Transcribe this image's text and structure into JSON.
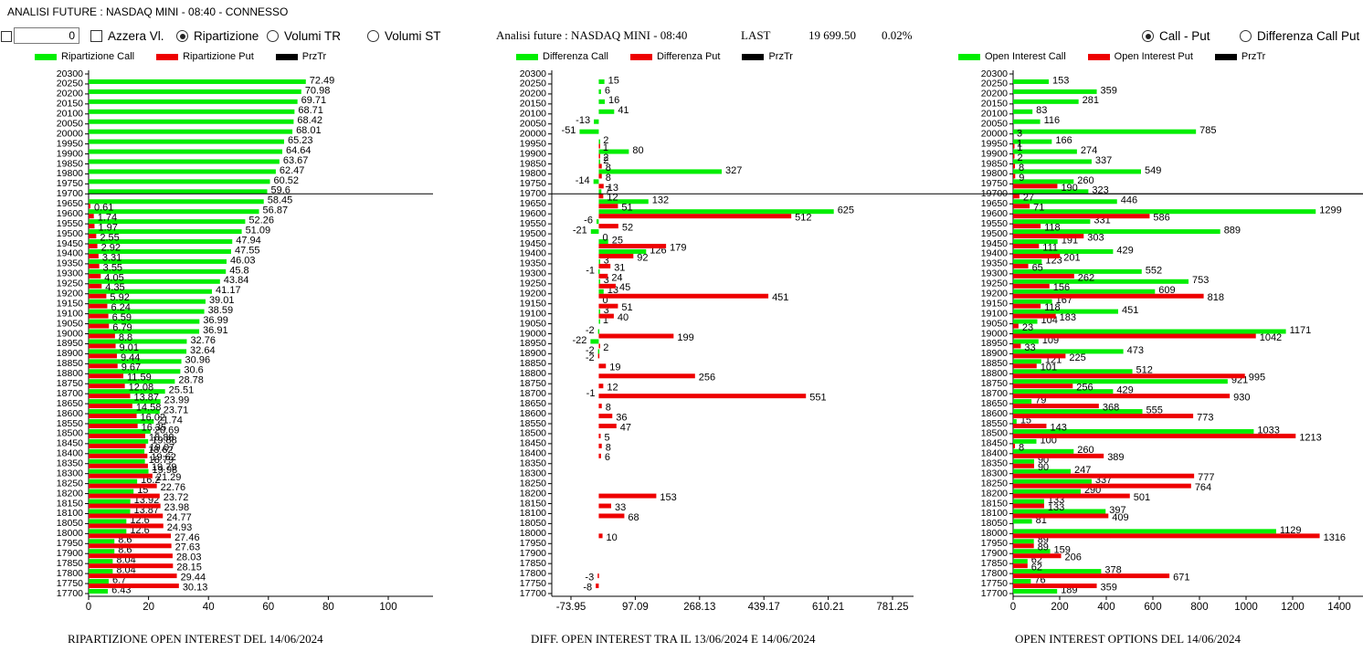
{
  "window_title": "ANALISI FUTURE : NASDAQ MINI - 08:40 - CONNESSO",
  "controls": {
    "number_value": "0",
    "azzera_label": "Azzera Vl.",
    "ripartizione_label": "Ripartizione",
    "volumi_tr_label": "Volumi TR",
    "volumi_st_label": "Volumi ST",
    "call_put_label": "Call - Put",
    "diff_call_put_label": "Differenza Call Put",
    "selected_view": "Ripartizione",
    "selected_mode": "Call - Put"
  },
  "header": {
    "title": "Analisi future : NASDAQ MINI - 08:40",
    "last_label": "LAST",
    "last_value": "19 699.50",
    "change": "0.02%"
  },
  "colors": {
    "call": "#00ee00",
    "put": "#ee0000",
    "prztr": "#000000"
  },
  "chart_data": [
    {
      "type": "bar",
      "orientation": "horizontal",
      "title": "RIPARTIZIONE OPEN INTEREST DEL 14/06/2024",
      "legend": [
        "Ripartizione Call",
        "Ripartizione Put",
        "PrzTr"
      ],
      "y_ticks": [
        "20300",
        "20250",
        "20200",
        "20150",
        "20100",
        "20050",
        "20000",
        "19950",
        "19900",
        "19850",
        "19800",
        "19750",
        "19700",
        "19650",
        "19600",
        "19550",
        "19500",
        "19450",
        "19400",
        "19350",
        "19300",
        "19250",
        "19200",
        "19150",
        "19100",
        "19050",
        "19000",
        "18950",
        "18900",
        "18850",
        "18800",
        "18750",
        "18700",
        "18650",
        "18600",
        "18550",
        "18500",
        "18450",
        "18400",
        "18350",
        "18300",
        "18250",
        "18200",
        "18150",
        "18100",
        "18050",
        "18000",
        "17950",
        "17900",
        "17850",
        "17800",
        "17750",
        "17700"
      ],
      "x_ticks": [
        "0",
        "20",
        "40",
        "60",
        "80",
        "100"
      ],
      "xlim": [
        0,
        115
      ],
      "przTr": 19700,
      "call": [
        [
          "20250",
          72.49
        ],
        [
          "20200",
          70.98
        ],
        [
          "20150",
          69.71
        ],
        [
          "20100",
          68.71
        ],
        [
          "20050",
          68.42
        ],
        [
          "20000",
          68.01
        ],
        [
          "19950",
          65.23
        ],
        [
          "19900",
          64.64
        ],
        [
          "19850",
          63.67
        ],
        [
          "19800",
          62.47
        ],
        [
          "19750",
          60.52
        ],
        [
          "19700",
          59.6
        ],
        [
          "19650",
          58.45
        ],
        [
          "19600",
          56.87
        ],
        [
          "19550",
          52.26
        ],
        [
          "19500",
          51.09
        ],
        [
          "19450",
          47.94
        ],
        [
          "19400",
          47.55
        ],
        [
          "19350",
          46.03
        ],
        [
          "19300",
          45.8
        ],
        [
          "19250",
          43.84
        ],
        [
          "19200",
          41.17
        ],
        [
          "19150",
          39.01
        ],
        [
          "19100",
          38.59
        ],
        [
          "19050",
          36.99
        ],
        [
          "19000",
          36.91
        ],
        [
          "18950",
          32.76
        ],
        [
          "18900",
          32.64
        ],
        [
          "18850",
          30.96
        ],
        [
          "18800",
          30.6
        ],
        [
          "18750",
          28.78
        ],
        [
          "18700",
          25.51
        ],
        [
          "18650",
          23.99
        ],
        [
          "18600",
          23.71
        ],
        [
          "18550",
          21.74
        ],
        [
          "18500",
          20.69
        ],
        [
          "18450",
          19.88
        ],
        [
          "18400",
          18.62
        ],
        [
          "18350",
          18.79
        ],
        [
          "18300",
          19.98
        ],
        [
          "18250",
          16.2
        ],
        [
          "18200",
          15
        ],
        [
          "18150",
          13.92
        ],
        [
          "18100",
          13.87
        ],
        [
          "18050",
          12.6
        ],
        [
          "18000",
          12.6
        ],
        [
          "17950",
          8.6
        ],
        [
          "17900",
          8.6
        ],
        [
          "17850",
          8.04
        ],
        [
          "17800",
          8.04
        ],
        [
          "17750",
          6.7
        ],
        [
          "17700",
          6.43
        ]
      ],
      "put": [
        [
          "19650",
          0.61
        ],
        [
          "19600",
          1.74
        ],
        [
          "19550",
          1.97
        ],
        [
          "19500",
          2.55
        ],
        [
          "19450",
          2.92
        ],
        [
          "19400",
          3.31
        ],
        [
          "19350",
          3.55
        ],
        [
          "19300",
          4.05
        ],
        [
          "19250",
          4.35
        ],
        [
          "19200",
          5.92
        ],
        [
          "19150",
          6.24
        ],
        [
          "19100",
          6.59
        ],
        [
          "19050",
          6.79
        ],
        [
          "19000",
          8.8
        ],
        [
          "18950",
          9.01
        ],
        [
          "18900",
          9.44
        ],
        [
          "18850",
          9.67
        ],
        [
          "18800",
          11.59
        ],
        [
          "18750",
          12.08
        ],
        [
          "18700",
          13.87
        ],
        [
          "18650",
          14.58
        ],
        [
          "18600",
          16.02
        ],
        [
          "18550",
          16.35
        ],
        [
          "18500",
          18.88
        ],
        [
          "18450",
          19.07
        ],
        [
          "18400",
          19.62
        ],
        [
          "18350",
          19.79
        ],
        [
          "18300",
          21.29
        ],
        [
          "18250",
          22.76
        ],
        [
          "18200",
          23.72
        ],
        [
          "18150",
          23.98
        ],
        [
          "18100",
          24.77
        ],
        [
          "18050",
          24.93
        ],
        [
          "18000",
          27.46
        ],
        [
          "17950",
          27.63
        ],
        [
          "17900",
          28.03
        ],
        [
          "17850",
          28.15
        ],
        [
          "17800",
          29.44
        ],
        [
          "17750",
          30.13
        ]
      ]
    },
    {
      "type": "bar",
      "orientation": "horizontal",
      "title": "DIFF. OPEN INTEREST TRA IL 13/06/2024 E 14/06/2024",
      "legend": [
        "Differenza Call",
        "Differenza Put",
        "PrzTr"
      ],
      "y_ticks": [
        "20300",
        "20250",
        "20200",
        "20150",
        "20100",
        "20050",
        "20000",
        "19950",
        "19900",
        "19850",
        "19800",
        "19750",
        "19700",
        "19650",
        "19600",
        "19550",
        "19500",
        "19450",
        "19400",
        "19350",
        "19300",
        "19250",
        "19200",
        "19150",
        "19100",
        "19050",
        "19000",
        "18950",
        "18900",
        "18850",
        "18800",
        "18750",
        "18700",
        "18650",
        "18600",
        "18550",
        "18500",
        "18450",
        "18400",
        "18350",
        "18300",
        "18250",
        "18200",
        "18150",
        "18100",
        "18050",
        "18000",
        "17950",
        "17900",
        "17850",
        "17800",
        "17750",
        "17700"
      ],
      "x_ticks": [
        "-73.95",
        "97.09",
        "268.13",
        "439.17",
        "610.21",
        "781.25"
      ],
      "xlim": [
        -73.95,
        781.25
      ],
      "przTr": 19700,
      "call": [
        [
          "20250",
          15
        ],
        [
          "20200",
          6
        ],
        [
          "20150",
          16
        ],
        [
          "20100",
          41
        ],
        [
          "20050",
          -13
        ],
        [
          "20000",
          -51
        ],
        [
          "19950",
          2
        ],
        [
          "19900",
          80
        ],
        [
          "19850",
          2
        ],
        [
          "19800",
          327
        ],
        [
          "19750",
          -14
        ],
        [
          "19700",
          7
        ],
        [
          "19650",
          132
        ],
        [
          "19600",
          625
        ],
        [
          "19550",
          -6
        ],
        [
          "19500",
          -21
        ],
        [
          "19450",
          25
        ],
        [
          "19400",
          126
        ],
        [
          "19350",
          3
        ],
        [
          "19300",
          -1
        ],
        [
          "19250",
          3
        ],
        [
          "19200",
          13
        ],
        [
          "19150",
          0
        ],
        [
          "19100",
          3
        ],
        [
          "19050",
          1
        ],
        [
          "19000",
          -2
        ],
        [
          "18950",
          -22
        ],
        [
          "18900",
          -2
        ]
      ],
      "put": [
        [
          "19950",
          1
        ],
        [
          "19900",
          2
        ],
        [
          "19850",
          8
        ],
        [
          "19800",
          8
        ],
        [
          "19750",
          13
        ],
        [
          "19700",
          12
        ],
        [
          "19650",
          51
        ],
        [
          "19600",
          512
        ],
        [
          "19550",
          52
        ],
        [
          "19500",
          0
        ],
        [
          "19450",
          179
        ],
        [
          "19400",
          92
        ],
        [
          "19350",
          31
        ],
        [
          "19300",
          24
        ],
        [
          "19250",
          45
        ],
        [
          "19200",
          451
        ],
        [
          "19150",
          51
        ],
        [
          "19100",
          40
        ],
        [
          "19000",
          199
        ],
        [
          "18950",
          2
        ],
        [
          "18900",
          -2
        ],
        [
          "18850",
          19
        ],
        [
          "18800",
          256
        ],
        [
          "18750",
          12
        ],
        [
          "18700",
          551
        ],
        [
          "18650",
          8
        ],
        [
          "18600",
          36
        ],
        [
          "18550",
          47
        ],
        [
          "18500",
          5
        ],
        [
          "18450",
          8
        ],
        [
          "18400",
          6
        ],
        [
          "18200",
          153
        ],
        [
          "18150",
          33
        ],
        [
          "18100",
          68
        ],
        [
          "18000",
          10
        ],
        [
          "17800",
          -3
        ],
        [
          "17750",
          -8
        ]
      ],
      "extra_labels": [
        [
          "18700",
          "-1"
        ]
      ]
    },
    {
      "type": "bar",
      "orientation": "horizontal",
      "title": "OPEN INTEREST OPTIONS DEL 14/06/2024",
      "legend": [
        "Open Interest Call",
        "Open Interest Put",
        "PrzTr"
      ],
      "y_ticks": [
        "20300",
        "20250",
        "20200",
        "20150",
        "20100",
        "20050",
        "20000",
        "19950",
        "19900",
        "19850",
        "19800",
        "19750",
        "19700",
        "19650",
        "19600",
        "19550",
        "19500",
        "19450",
        "19400",
        "19350",
        "19300",
        "19250",
        "19200",
        "19150",
        "19100",
        "19050",
        "19000",
        "18950",
        "18900",
        "18850",
        "18800",
        "18750",
        "18700",
        "18650",
        "18600",
        "18550",
        "18500",
        "18450",
        "18400",
        "18350",
        "18300",
        "18250",
        "18200",
        "18150",
        "18100",
        "18050",
        "18000",
        "17950",
        "17900",
        "17850",
        "17800",
        "17750",
        "17700"
      ],
      "x_ticks": [
        "0",
        "200",
        "400",
        "600",
        "800",
        "1000",
        "1200",
        "1400"
      ],
      "xlim": [
        0,
        1470
      ],
      "przTr": 19700,
      "call": [
        [
          "20250",
          153
        ],
        [
          "20200",
          359
        ],
        [
          "20150",
          281
        ],
        [
          "20100",
          83
        ],
        [
          "20050",
          116
        ],
        [
          "20000",
          785
        ],
        [
          "19950",
          166
        ],
        [
          "19900",
          274
        ],
        [
          "19850",
          337
        ],
        [
          "19800",
          549
        ],
        [
          "19750",
          260
        ],
        [
          "19700",
          323
        ],
        [
          "19650",
          446
        ],
        [
          "19600",
          1299
        ],
        [
          "19550",
          331
        ],
        [
          "19500",
          889
        ],
        [
          "19450",
          191
        ],
        [
          "19400",
          429
        ],
        [
          "19350",
          123
        ],
        [
          "19300",
          552
        ],
        [
          "19250",
          753
        ],
        [
          "19200",
          609
        ],
        [
          "19150",
          167
        ],
        [
          "19100",
          451
        ],
        [
          "19050",
          104
        ],
        [
          "19000",
          1171
        ],
        [
          "18950",
          109
        ],
        [
          "18900",
          473
        ],
        [
          "18850",
          121
        ],
        [
          "18800",
          512
        ],
        [
          "18750",
          921
        ],
        [
          "18700",
          429
        ],
        [
          "18650",
          79
        ],
        [
          "18600",
          555
        ],
        [
          "18550",
          15
        ],
        [
          "18500",
          1033
        ],
        [
          "18450",
          100
        ],
        [
          "18400",
          260
        ],
        [
          "18350",
          90
        ],
        [
          "18300",
          247
        ],
        [
          "18250",
          337
        ],
        [
          "18200",
          290
        ],
        [
          "18150",
          133
        ],
        [
          "18100",
          397
        ],
        [
          "18050",
          81
        ],
        [
          "18000",
          1129
        ],
        [
          "17950",
          89
        ],
        [
          "17900",
          159
        ],
        [
          "17850",
          62
        ],
        [
          "17800",
          378
        ],
        [
          "17750",
          76
        ],
        [
          "17700",
          189
        ]
      ],
      "put": [
        [
          "19950",
          1
        ],
        [
          "19900",
          2
        ],
        [
          "19850",
          8
        ],
        [
          "19800",
          9
        ],
        [
          "19750",
          190
        ],
        [
          "19700",
          27
        ],
        [
          "19650",
          71
        ],
        [
          "19600",
          586
        ],
        [
          "19550",
          118
        ],
        [
          "19500",
          303
        ],
        [
          "19450",
          111
        ],
        [
          "19400",
          201
        ],
        [
          "19350",
          65
        ],
        [
          "19300",
          262
        ],
        [
          "19250",
          156
        ],
        [
          "19200",
          818
        ],
        [
          "19150",
          118
        ],
        [
          "19100",
          183
        ],
        [
          "19050",
          23
        ],
        [
          "19000",
          1042
        ],
        [
          "18950",
          33
        ],
        [
          "18900",
          225
        ],
        [
          "18850",
          101
        ],
        [
          "18800",
          995
        ],
        [
          "18750",
          256
        ],
        [
          "18700",
          930
        ],
        [
          "18650",
          368
        ],
        [
          "18600",
          773
        ],
        [
          "18550",
          143
        ],
        [
          "18500",
          1213
        ],
        [
          "18450",
          8
        ],
        [
          "18400",
          389
        ],
        [
          "18350",
          90
        ],
        [
          "18300",
          777
        ],
        [
          "18250",
          764
        ],
        [
          "18200",
          501
        ],
        [
          "18150",
          133
        ],
        [
          "18100",
          409
        ],
        [
          "18000",
          1316
        ],
        [
          "17950",
          89
        ],
        [
          "17900",
          206
        ],
        [
          "17850",
          62
        ],
        [
          "17800",
          671
        ],
        [
          "17750",
          359
        ]
      ],
      "extra_labels": [
        [
          "20000",
          "3"
        ],
        [
          "19950",
          "1"
        ]
      ]
    }
  ]
}
